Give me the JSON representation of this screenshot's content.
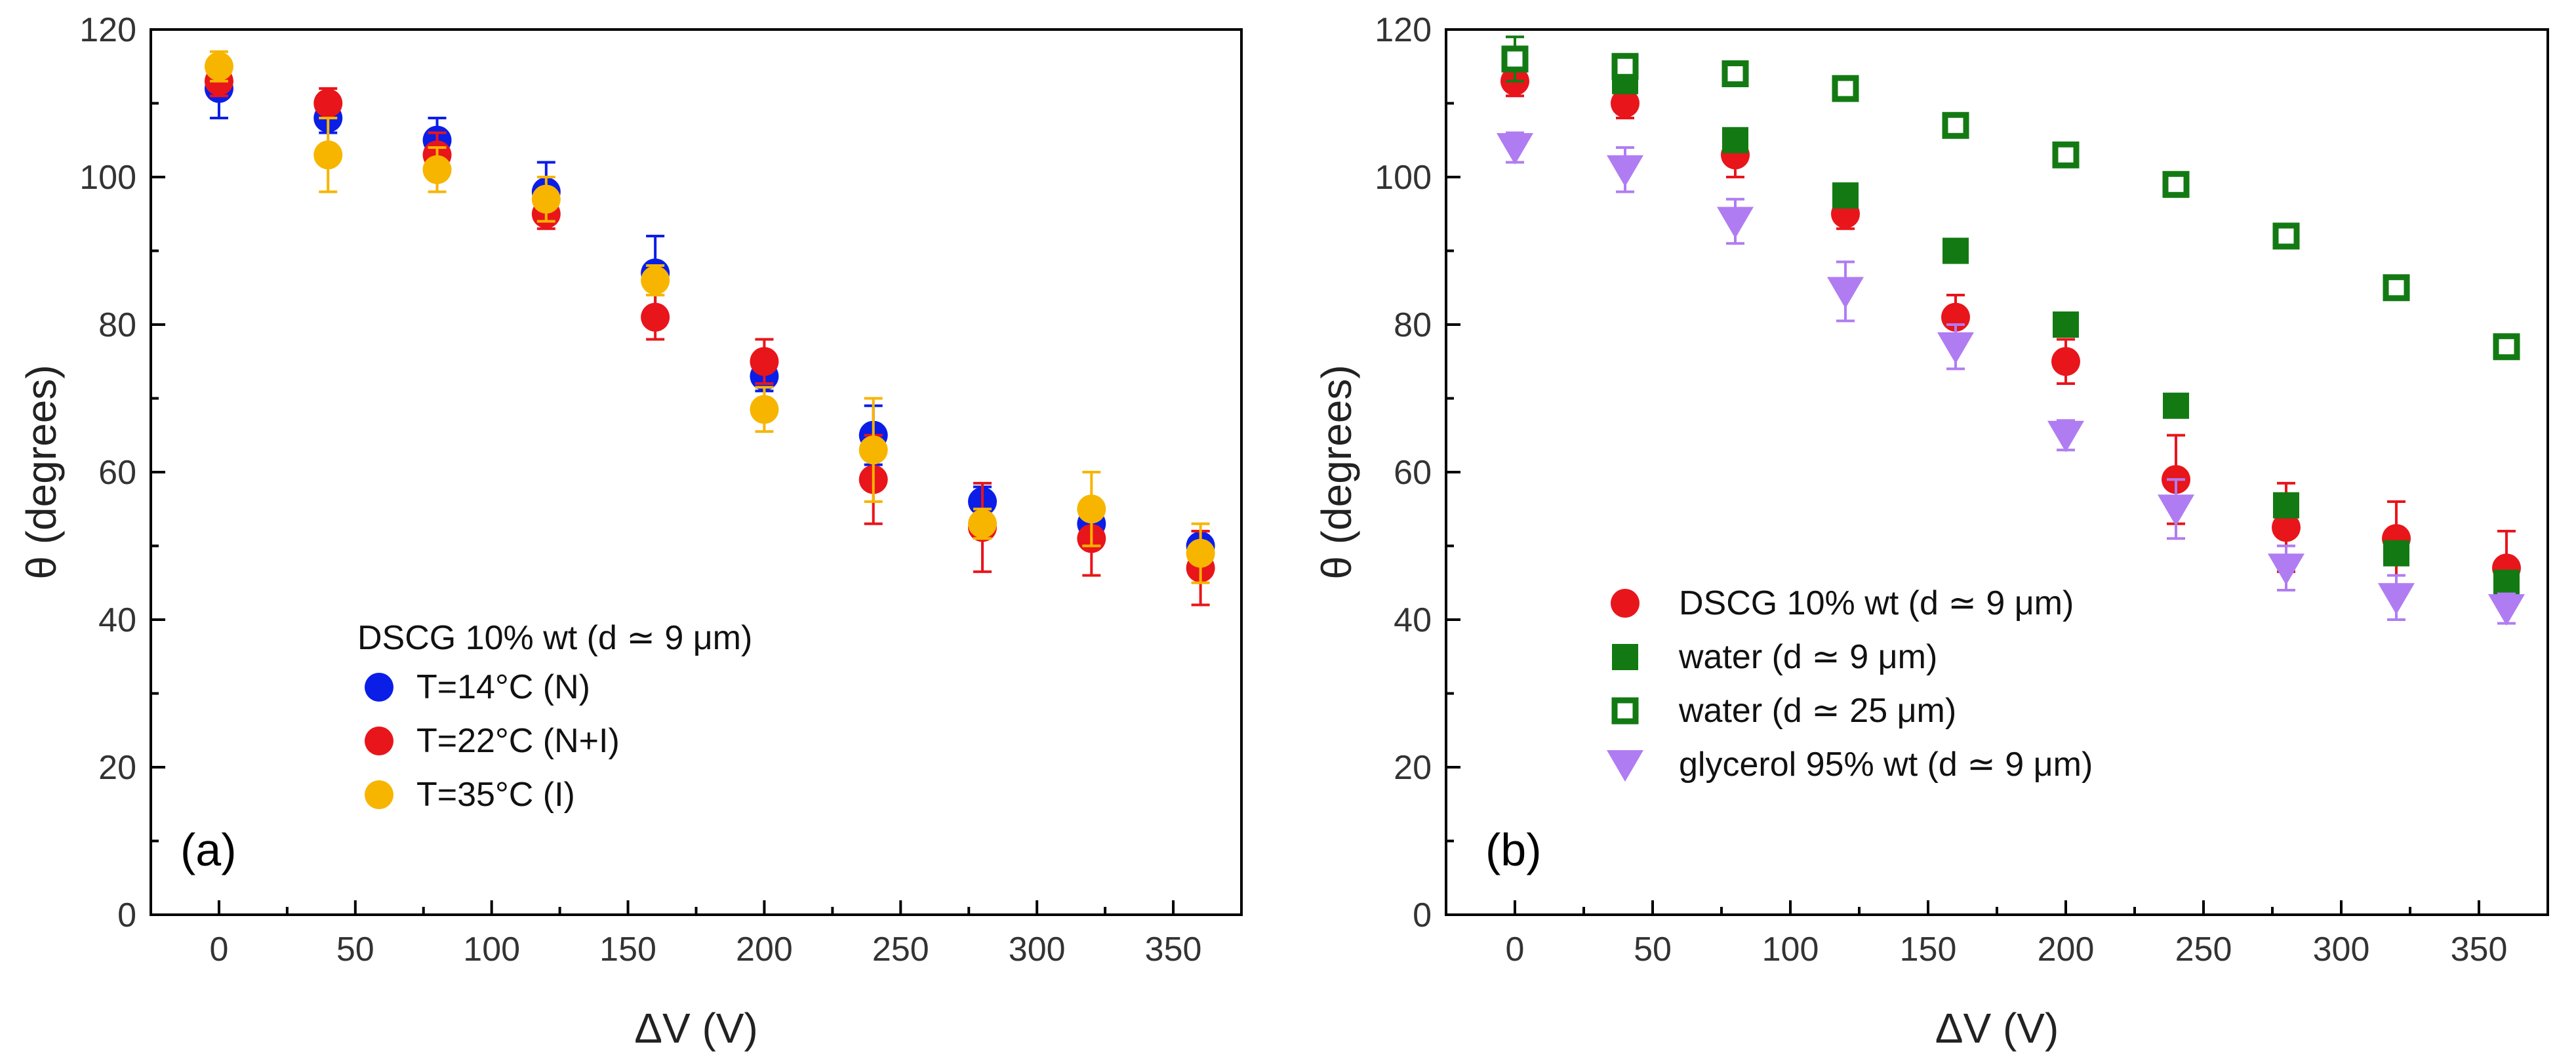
{
  "chart_data": [
    {
      "panel": "(a)",
      "type": "scatter",
      "xlabel": "ΔV (V)",
      "ylabel": "θ (degrees)",
      "xlim": [
        -25,
        375
      ],
      "ylim": [
        0,
        120
      ],
      "xticks": [
        0,
        50,
        100,
        150,
        200,
        250,
        300,
        350
      ],
      "yticks": [
        0,
        20,
        40,
        60,
        80,
        100,
        120
      ],
      "legend_title": "DSCG 10% wt (d ≃ 9 μm)",
      "legend_position": "lower-left",
      "series": [
        {
          "name": "T=14°C (N)",
          "color": "#0a1ee8",
          "marker": "circle",
          "x": [
            0,
            40,
            80,
            120,
            160,
            200,
            240,
            280,
            320,
            360
          ],
          "y": [
            112,
            108,
            105,
            98,
            87,
            73,
            65,
            56,
            53,
            50
          ],
          "err": [
            4,
            2,
            3,
            4,
            5,
            2,
            4,
            2,
            2,
            2
          ]
        },
        {
          "name": "T=22°C (N+I)",
          "color": "#e8151b",
          "marker": "circle",
          "x": [
            0,
            40,
            80,
            120,
            160,
            200,
            240,
            280,
            320,
            360
          ],
          "y": [
            113,
            110,
            103,
            95,
            81,
            75,
            59,
            52.5,
            51,
            47
          ],
          "err": [
            2,
            2,
            3,
            2,
            3,
            3,
            6,
            6,
            5,
            5
          ]
        },
        {
          "name": "T=35°C (I)",
          "color": "#f7b500",
          "marker": "circle",
          "x": [
            0,
            40,
            80,
            120,
            160,
            200,
            240,
            280,
            320,
            360
          ],
          "y": [
            115,
            103,
            101,
            97,
            86,
            68.5,
            63,
            53,
            55,
            49
          ],
          "err": [
            2,
            5,
            3,
            3,
            2,
            3,
            7,
            2,
            5,
            4
          ]
        }
      ]
    },
    {
      "panel": "(b)",
      "type": "scatter",
      "xlabel": "ΔV (V)",
      "ylabel": "θ (degrees)",
      "xlim": [
        -25,
        375
      ],
      "ylim": [
        0,
        120
      ],
      "xticks": [
        0,
        50,
        100,
        150,
        200,
        250,
        300,
        350
      ],
      "yticks": [
        0,
        20,
        40,
        60,
        80,
        100,
        120
      ],
      "legend_position": "lower-left",
      "series": [
        {
          "name": "DSCG 10% wt  (d ≃ 9 μm)",
          "color": "#e8151b",
          "marker": "circle",
          "x": [
            0,
            40,
            80,
            120,
            160,
            200,
            240,
            280,
            320,
            360
          ],
          "y": [
            113,
            110,
            103,
            95,
            81,
            75,
            59,
            52.5,
            51,
            47
          ],
          "err": [
            2,
            2,
            3,
            2,
            3,
            3,
            6,
            6,
            5,
            5
          ]
        },
        {
          "name": "water (d ≃ 9 μm)",
          "color": "#137a13",
          "marker": "square",
          "x": [
            0,
            40,
            80,
            120,
            160,
            200,
            240,
            280,
            320,
            360
          ],
          "y": [
            116,
            113,
            105,
            97.5,
            90,
            80,
            69,
            55.5,
            49,
            45
          ],
          "err": [
            1,
            1,
            1,
            1,
            1,
            1,
            1,
            1,
            1,
            1
          ]
        },
        {
          "name": "water (d ≃ 25 μm)",
          "color": "#137a13",
          "marker": "square-open",
          "x": [
            0,
            40,
            80,
            120,
            160,
            200,
            240,
            280,
            320,
            360
          ],
          "y": [
            116,
            115,
            114,
            112,
            107,
            103,
            99,
            92,
            85,
            77
          ],
          "err": [
            3,
            1,
            1,
            1,
            1,
            1,
            1,
            1,
            1,
            1
          ]
        },
        {
          "name": "glycerol 95% wt (d ≃ 9 μm)",
          "color": "#b07cf2",
          "marker": "triangle-down",
          "x": [
            0,
            40,
            80,
            120,
            160,
            200,
            240,
            280,
            320,
            360
          ],
          "y": [
            104,
            101,
            94,
            84.5,
            77,
            65,
            55,
            47,
            43,
            41.5
          ],
          "err": [
            2,
            3,
            3,
            4,
            3,
            2,
            4,
            3,
            3,
            2
          ]
        }
      ]
    }
  ]
}
